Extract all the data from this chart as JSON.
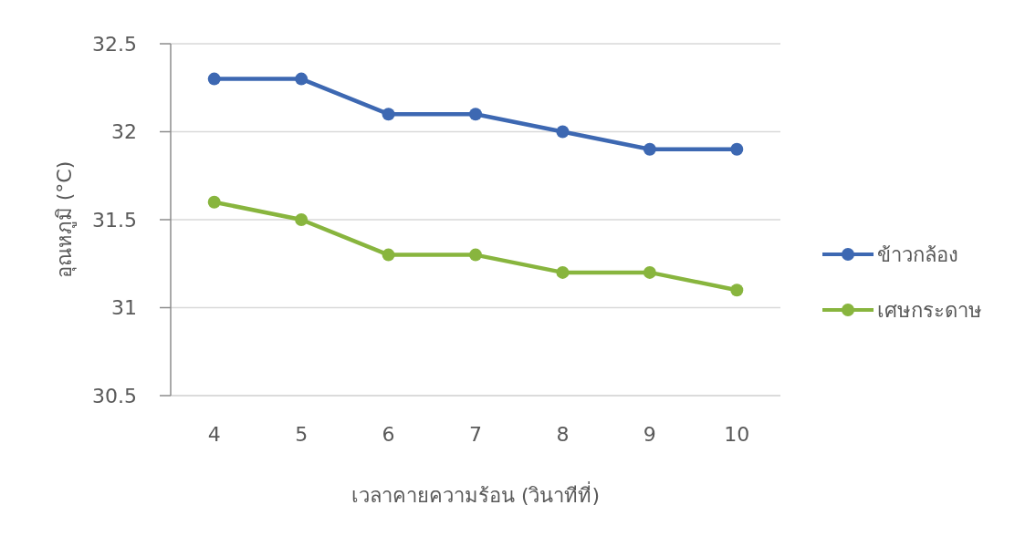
{
  "chart_data": {
    "type": "line",
    "xlabel": "เวลาคายความร้อน (วินาทีที่)",
    "ylabel": "อุณหภูมิ (°C)",
    "categories": [
      "4",
      "5",
      "6",
      "7",
      "8",
      "9",
      "10"
    ],
    "series": [
      {
        "name": "ข้าวกล้อง",
        "color": "#3d68b2",
        "values": [
          32.3,
          32.3,
          32.1,
          32.1,
          32.0,
          31.9,
          31.9
        ]
      },
      {
        "name": "เศษกระดาษ",
        "color": "#88b53e",
        "values": [
          31.6,
          31.5,
          31.3,
          31.3,
          31.2,
          31.2,
          31.1
        ]
      }
    ],
    "ylim": [
      30.5,
      32.5
    ],
    "yticks": [
      30.5,
      31,
      31.5,
      32,
      32.5
    ],
    "grid": "y",
    "legend": "right",
    "marker": "circle",
    "line_style": "solid"
  }
}
